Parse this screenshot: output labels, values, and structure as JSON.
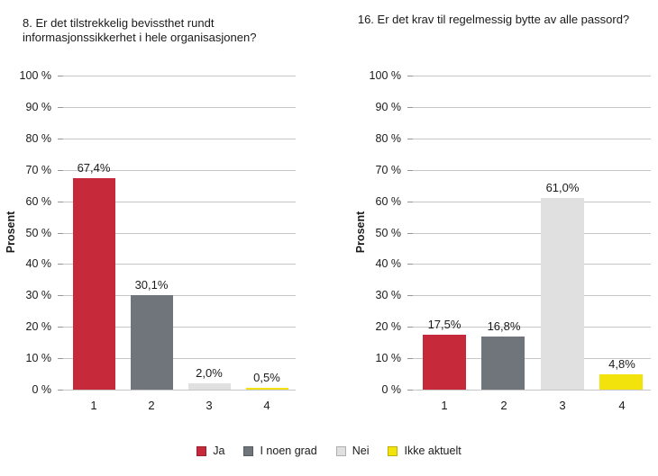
{
  "page": {
    "background": "#ffffff",
    "text_color": "#1a1a1a",
    "gridline_color": "#c6c6c6",
    "tick_color": "#969696"
  },
  "legend": {
    "items": [
      {
        "label": "Ja",
        "color": "#c5293a"
      },
      {
        "label": "I noen grad",
        "color": "#6f757a"
      },
      {
        "label": "Nei",
        "color": "#e0e0e0"
      },
      {
        "label": "Ikke aktuelt",
        "color": "#f2e30c"
      }
    ]
  },
  "chart_data": [
    {
      "type": "bar",
      "title": "8. Er det tilstrekkelig bevissthet rundt informasjonssikkerhet i hele organisasjonen?",
      "ylabel": "Prosent",
      "categories": [
        "1",
        "2",
        "3",
        "4"
      ],
      "values": [
        67.4,
        30.1,
        2.0,
        0.5
      ],
      "value_labels": [
        "67,4%",
        "30,1%",
        "2,0%",
        "0,5%"
      ],
      "bar_colors": [
        "#c5293a",
        "#6f757a",
        "#e0e0e0",
        "#f2e30c"
      ],
      "series_names": [
        "Ja",
        "I noen grad",
        "Nei",
        "Ikke aktuelt"
      ],
      "ylim": [
        0,
        100
      ],
      "ytick_step": 10,
      "ytick_labels": [
        "100 %",
        "90 %",
        "80 %",
        "70 %",
        "60 %",
        "50 %",
        "40 %",
        "30 %",
        "20 %",
        "10 %",
        "0 %"
      ],
      "grid": true,
      "legend_position": "bottom-shared"
    },
    {
      "type": "bar",
      "title": "16. Er det krav til regelmessig bytte av alle passord?",
      "ylabel": "Prosent",
      "categories": [
        "1",
        "2",
        "3",
        "4"
      ],
      "values": [
        17.5,
        16.8,
        61.0,
        4.8
      ],
      "value_labels": [
        "17,5%",
        "16,8%",
        "61,0%",
        "4,8%"
      ],
      "bar_colors": [
        "#c5293a",
        "#6f757a",
        "#e0e0e0",
        "#f2e30c"
      ],
      "series_names": [
        "Ja",
        "I noen grad",
        "Nei",
        "Ikke aktuelt"
      ],
      "ylim": [
        0,
        100
      ],
      "ytick_step": 10,
      "ytick_labels": [
        "100 %",
        "90 %",
        "80 %",
        "70 %",
        "60 %",
        "50 %",
        "40 %",
        "30 %",
        "20 %",
        "10 %",
        "0 %"
      ],
      "grid": true,
      "legend_position": "bottom-shared"
    }
  ]
}
